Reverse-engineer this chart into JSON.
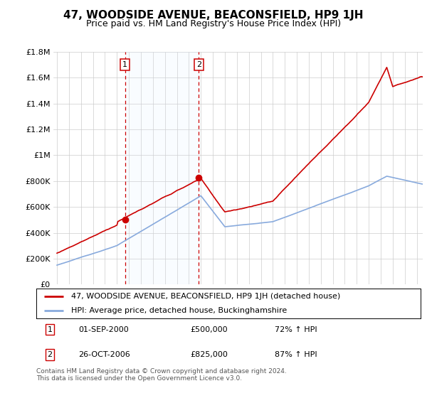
{
  "title": "47, WOODSIDE AVENUE, BEACONSFIELD, HP9 1JH",
  "subtitle": "Price paid vs. HM Land Registry's House Price Index (HPI)",
  "ylim": [
    0,
    1800000
  ],
  "xlim_start": 1995.0,
  "xlim_end": 2025.5,
  "yticks": [
    0,
    200000,
    400000,
    600000,
    800000,
    1000000,
    1200000,
    1400000,
    1600000,
    1800000
  ],
  "ytick_labels": [
    "£0",
    "£200K",
    "£400K",
    "£600K",
    "£800K",
    "£1M",
    "£1.2M",
    "£1.4M",
    "£1.6M",
    "£1.8M"
  ],
  "xticks": [
    1995,
    1996,
    1997,
    1998,
    1999,
    2000,
    2001,
    2002,
    2003,
    2004,
    2005,
    2006,
    2007,
    2008,
    2009,
    2010,
    2011,
    2012,
    2013,
    2014,
    2015,
    2016,
    2017,
    2018,
    2019,
    2020,
    2021,
    2022,
    2023,
    2024,
    2025
  ],
  "sale1_x": 2000.67,
  "sale1_y": 500000,
  "sale1_label": "1",
  "sale2_x": 2006.82,
  "sale2_y": 825000,
  "sale2_label": "2",
  "legend_line1": "47, WOODSIDE AVENUE, BEACONSFIELD, HP9 1JH (detached house)",
  "legend_line2": "HPI: Average price, detached house, Buckinghamshire",
  "property_color": "#cc0000",
  "hpi_color": "#88aadd",
  "vline_color": "#cc0000",
  "shade_color": "#ddeeff",
  "background_color": "#ffffff",
  "grid_color": "#cccccc",
  "title_fontsize": 11,
  "subtitle_fontsize": 9,
  "tick_fontsize": 8,
  "legend_fontsize": 8,
  "annot_fontsize": 8,
  "footnote": "Contains HM Land Registry data © Crown copyright and database right 2024.\nThis data is licensed under the Open Government Licence v3.0."
}
